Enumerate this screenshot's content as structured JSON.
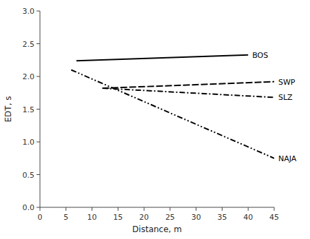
{
  "chart_data": {
    "type": "line",
    "xlabel": "Distance, m",
    "ylabel": "EDT, s",
    "xlim": [
      0,
      45
    ],
    "ylim": [
      0.0,
      3.0
    ],
    "xticks": [
      0,
      5,
      10,
      15,
      20,
      25,
      30,
      35,
      40,
      45
    ],
    "yticks": [
      {
        "value": 0.0,
        "label": "0.0"
      },
      0.5,
      {
        "value": 1.0,
        "label": "1.0"
      },
      1.5,
      {
        "value": 2.0,
        "label": "2.0"
      },
      2.5,
      {
        "value": 3.0,
        "label": "3.0"
      }
    ],
    "grid": false,
    "series": [
      {
        "name": "BOS",
        "x": [
          7,
          40
        ],
        "values": [
          2.24,
          2.33
        ],
        "color": "#000000",
        "line_style": "solid"
      },
      {
        "name": "SWP",
        "x": [
          12,
          45
        ],
        "values": [
          1.82,
          1.92
        ],
        "color": "#000000",
        "line_style": "long_dash"
      },
      {
        "name": "SLZ",
        "x": [
          12,
          45
        ],
        "values": [
          1.82,
          1.68
        ],
        "color": "#000000",
        "line_style": "dashdot"
      },
      {
        "name": "NAJA",
        "x": [
          6,
          45
        ],
        "values": [
          2.1,
          0.75
        ],
        "color": "#000000",
        "line_style": "dashdotdot"
      }
    ]
  }
}
